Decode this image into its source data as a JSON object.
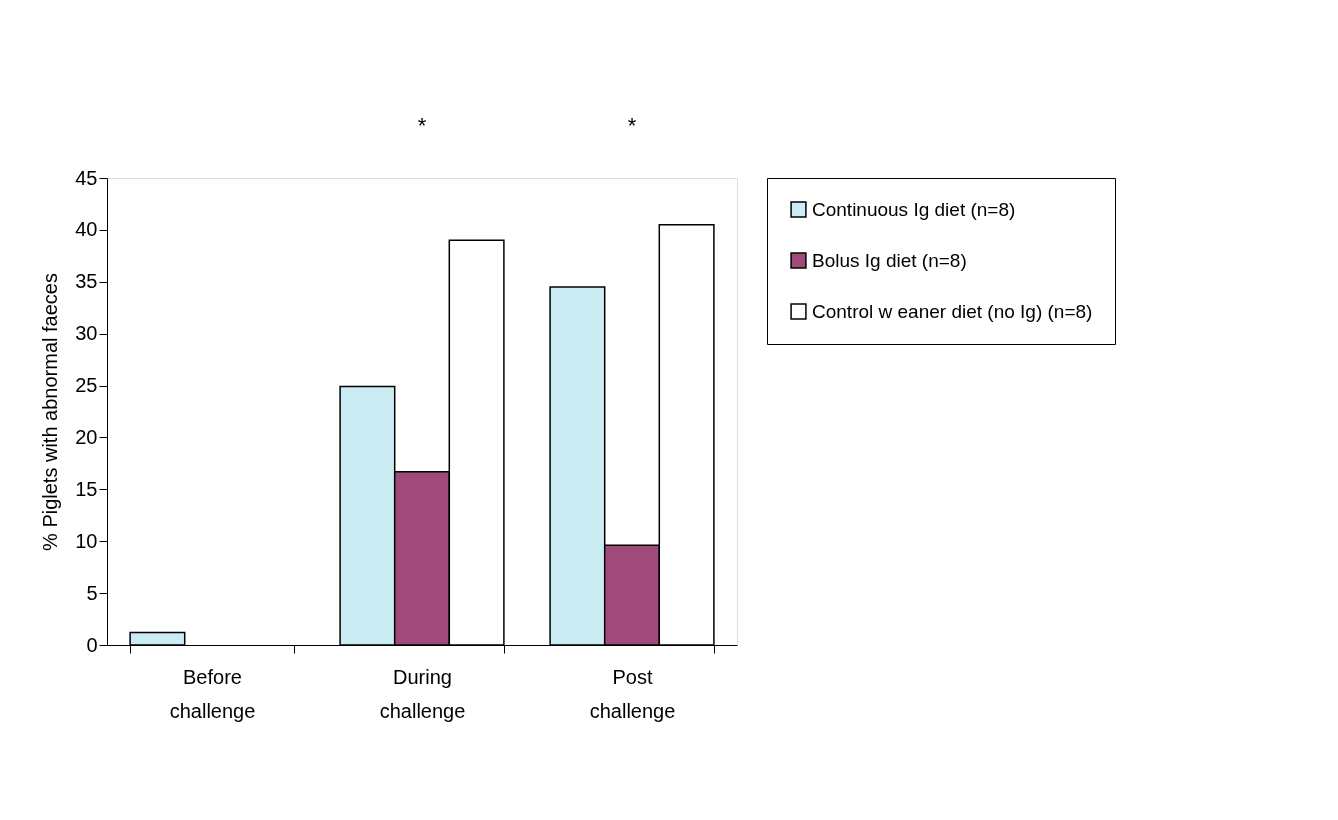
{
  "chart_data": {
    "type": "bar",
    "ylabel": "% Piglets with abnormal faeces",
    "categories": [
      "Before challenge",
      "During challenge",
      "Post challenge"
    ],
    "series": [
      {
        "name": "Continuous  Ig diet (n=8)",
        "color": "#ccecf4",
        "values": [
          1.2,
          24.9,
          34.5
        ]
      },
      {
        "name": "Bolus  Ig diet (n=8)",
        "color": "#a04a7c",
        "values": [
          0,
          16.7,
          9.6
        ]
      },
      {
        "name": "Control w eaner diet (no Ig) (n=8)",
        "color": "#ffffff",
        "values": [
          0,
          39.0,
          40.5
        ]
      }
    ],
    "ylim": [
      0,
      45
    ],
    "yticks": [
      0,
      5,
      10,
      15,
      20,
      25,
      30,
      35,
      40,
      45
    ],
    "grid": false,
    "legend": "right",
    "annotations": [
      "*",
      "*"
    ]
  }
}
